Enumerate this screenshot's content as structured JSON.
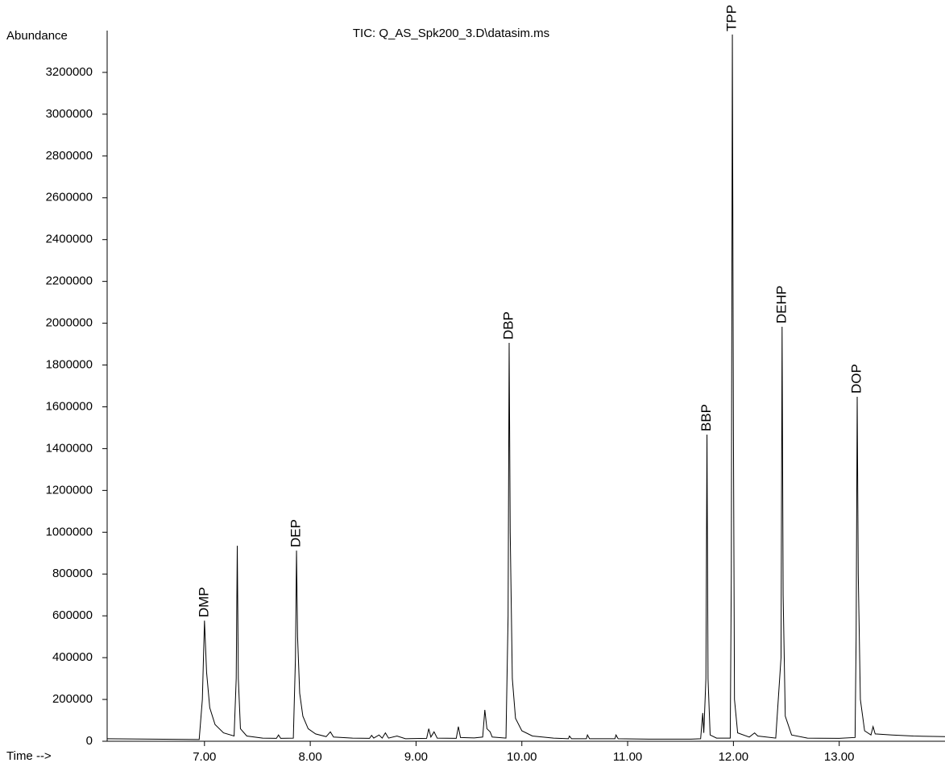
{
  "chart_data": {
    "type": "line",
    "title": "TIC: Q_AS_Spk200_3.D\\datasim.ms",
    "y_label": "Abundance",
    "x_label": "Time -->",
    "color": "#000000",
    "xlim": [
      6.08,
      14.0
    ],
    "ylim": [
      0,
      3400000
    ],
    "xticks": [
      {
        "value": 7,
        "label": "7.00"
      },
      {
        "value": 8,
        "label": "8.00"
      },
      {
        "value": 9,
        "label": "9.00"
      },
      {
        "value": 10,
        "label": "10.00"
      },
      {
        "value": 11,
        "label": "11.00"
      },
      {
        "value": 12,
        "label": "12.00"
      },
      {
        "value": 13,
        "label": "13.00"
      }
    ],
    "yticks": [
      0,
      200000,
      400000,
      600000,
      800000,
      1000000,
      1200000,
      1400000,
      1600000,
      1800000,
      2000000,
      2200000,
      2400000,
      2600000,
      2800000,
      3000000,
      3200000
    ],
    "x": [
      6.08,
      6.5,
      6.95,
      6.98,
      7.0,
      7.02,
      7.05,
      7.1,
      7.18,
      7.28,
      7.3,
      7.31,
      7.32,
      7.34,
      7.4,
      7.55,
      7.68,
      7.7,
      7.72,
      7.84,
      7.86,
      7.87,
      7.88,
      7.9,
      7.93,
      7.98,
      8.05,
      8.15,
      8.19,
      8.22,
      8.4,
      8.56,
      8.58,
      8.6,
      8.65,
      8.68,
      8.71,
      8.74,
      8.82,
      8.9,
      9.1,
      9.12,
      9.14,
      9.17,
      9.2,
      9.38,
      9.4,
      9.42,
      9.55,
      9.63,
      9.65,
      9.67,
      9.7,
      9.72,
      9.85,
      9.87,
      9.88,
      9.89,
      9.91,
      9.94,
      10.0,
      10.1,
      10.3,
      10.44,
      10.45,
      10.47,
      10.61,
      10.62,
      10.64,
      10.88,
      10.89,
      10.91,
      11.2,
      11.6,
      11.69,
      11.71,
      11.72,
      11.74,
      11.75,
      11.76,
      11.78,
      11.84,
      11.97,
      11.98,
      11.99,
      12.0,
      12.01,
      12.04,
      12.15,
      12.2,
      12.23,
      12.4,
      12.45,
      12.46,
      12.47,
      12.49,
      12.55,
      12.7,
      13.0,
      13.15,
      13.16,
      13.17,
      13.18,
      13.2,
      13.24,
      13.3,
      13.32,
      13.34,
      13.5,
      13.7,
      14.0
    ],
    "values": [
      12000,
      10000,
      8000,
      200000,
      577000,
      330000,
      160000,
      80000,
      40000,
      25000,
      300000,
      935000,
      300000,
      60000,
      25000,
      15000,
      14000,
      30000,
      14000,
      15000,
      400000,
      912000,
      500000,
      230000,
      120000,
      60000,
      35000,
      22000,
      45000,
      20000,
      15000,
      14000,
      28000,
      15000,
      30000,
      15000,
      40000,
      15000,
      25000,
      12000,
      14000,
      60000,
      20000,
      45000,
      15000,
      14000,
      70000,
      18000,
      16000,
      20000,
      150000,
      60000,
      45000,
      20000,
      15000,
      600000,
      1906000,
      1000000,
      300000,
      110000,
      50000,
      25000,
      15000,
      12000,
      25000,
      12000,
      12000,
      30000,
      12000,
      12000,
      30000,
      12000,
      10000,
      10000,
      12000,
      135000,
      40000,
      300000,
      1467000,
      300000,
      30000,
      15000,
      15000,
      800000,
      3381000,
      1500000,
      200000,
      40000,
      20000,
      40000,
      25000,
      15000,
      400000,
      1983000,
      700000,
      120000,
      30000,
      15000,
      14000,
      18000,
      500000,
      1648000,
      800000,
      200000,
      50000,
      30000,
      70000,
      35000,
      30000,
      25000,
      22000
    ],
    "annotations": [
      {
        "text": "DMP",
        "x": 7.0,
        "y": 577000
      },
      {
        "text": "DEP",
        "x": 7.87,
        "y": 912000
      },
      {
        "text": "DBP",
        "x": 9.88,
        "y": 1906000
      },
      {
        "text": "BBP",
        "x": 11.75,
        "y": 1467000
      },
      {
        "text": "TPP",
        "x": 11.99,
        "y": 3381000
      },
      {
        "text": "DEHP",
        "x": 12.46,
        "y": 1983000
      },
      {
        "text": "DOP",
        "x": 13.17,
        "y": 1648000
      }
    ]
  }
}
